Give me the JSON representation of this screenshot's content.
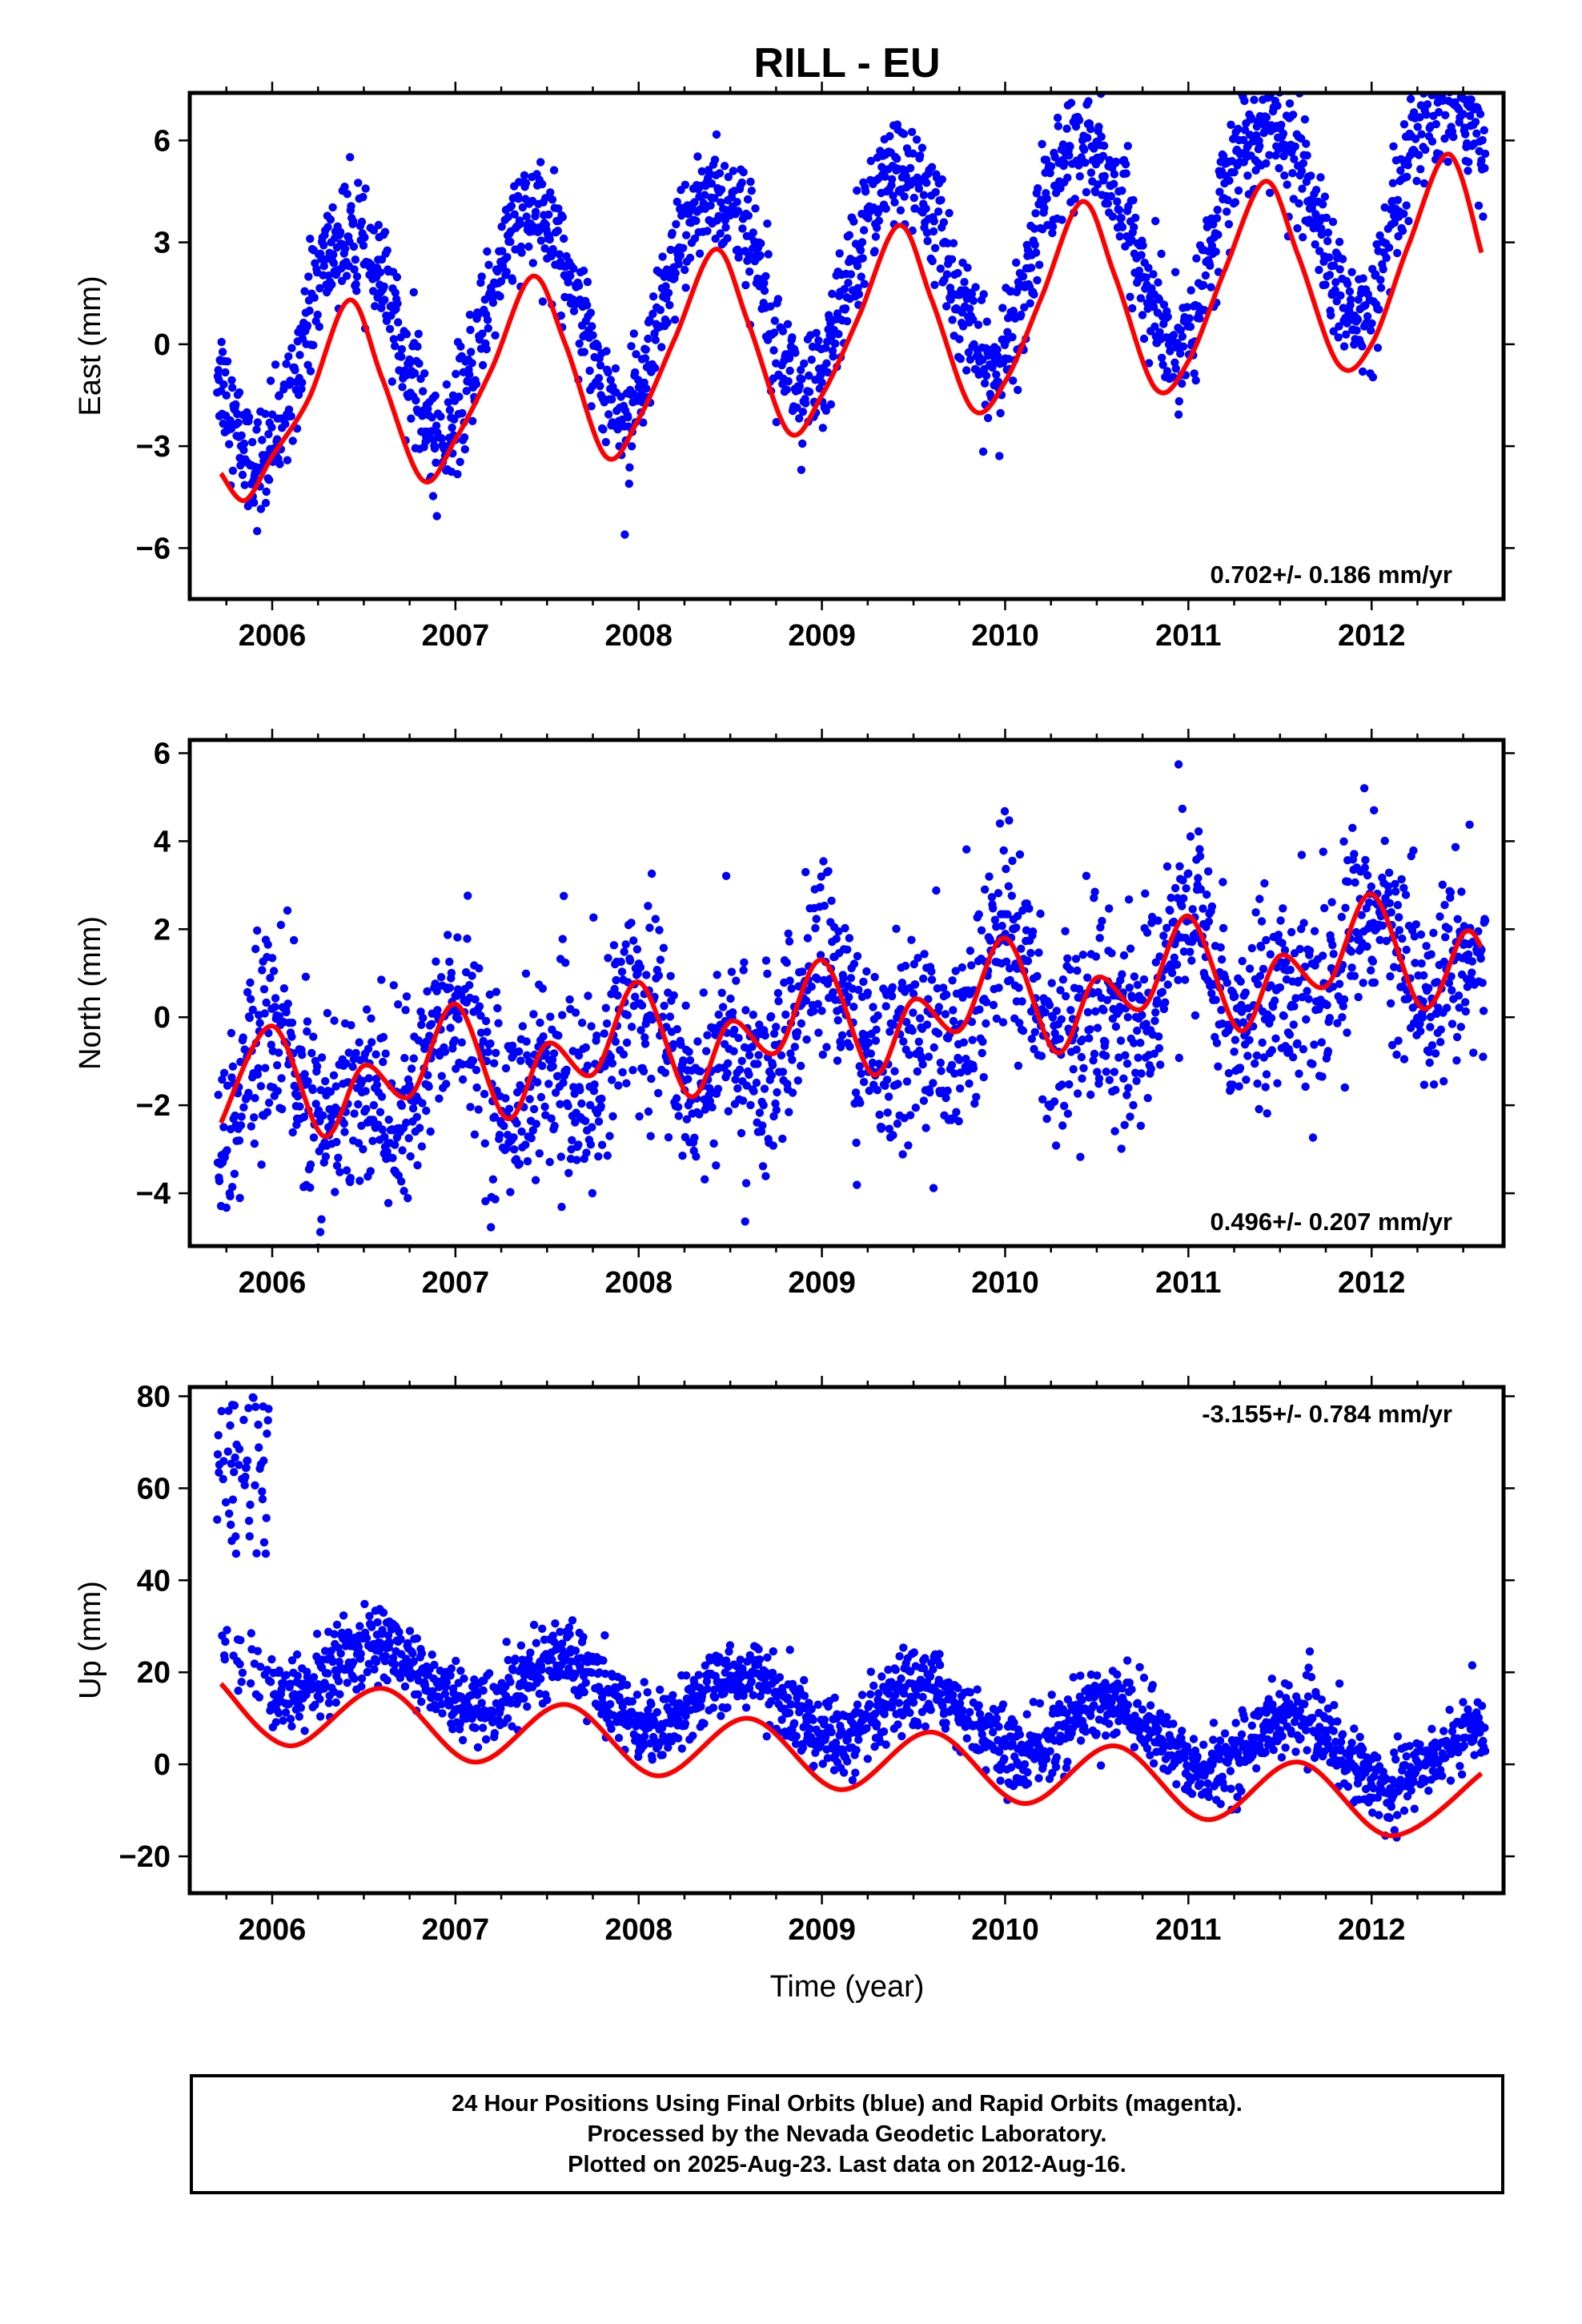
{
  "title": "RILL - EU",
  "xlabel": "Time (year)",
  "colors": {
    "final_orbits": "#0000ff",
    "model_fit": "#ff0000",
    "frame": "#000000"
  },
  "footer": {
    "line1": "24 Hour Positions Using Final Orbits (blue) and Rapid Orbits (magenta).",
    "line2": "Processed by the Nevada Geodetic Laboratory.",
    "line3": "Plotted on 2025-Aug-23. Last data on 2012-Aug-16."
  },
  "chart_data": [
    {
      "type": "scatter",
      "ylabel": "East (mm)",
      "xlim": [
        2005.55,
        2012.72
      ],
      "ylim": [
        -7.5,
        7.4
      ],
      "x_ticks": [
        2006,
        2007,
        2008,
        2009,
        2010,
        2011,
        2012
      ],
      "y_ticks": [
        -6,
        -3,
        0,
        3,
        6
      ],
      "rate_label": "0.702+/- 0.186 mm/yr",
      "rate_position": "bottom-right",
      "series": [
        {
          "role": "observations",
          "model": {
            "offset": 2.0,
            "trend": 0.7,
            "annual_amp": 3.1,
            "annual_peak": 0.42,
            "semiannual_amp": 0.35,
            "semiannual_phase": 0.2,
            "noise": 0.85
          }
        },
        {
          "role": "model-fit",
          "x": [
            2005.72,
            2005.85,
            2006.0,
            2006.2,
            2006.42,
            2006.6,
            2006.82,
            2007.0,
            2007.2,
            2007.42,
            2007.6,
            2007.82,
            2008.0,
            2008.2,
            2008.42,
            2008.6,
            2008.82,
            2009.0,
            2009.2,
            2009.42,
            2009.6,
            2009.82,
            2010.0,
            2010.2,
            2010.42,
            2010.6,
            2010.82,
            2011.0,
            2011.2,
            2011.42,
            2011.6,
            2011.82,
            2012.0,
            2012.2,
            2012.42,
            2012.6
          ],
          "y": [
            -3.8,
            -4.6,
            -3.3,
            -1.6,
            1.3,
            -1.0,
            -4.0,
            -2.8,
            -0.7,
            2.0,
            0.0,
            -3.3,
            -2.2,
            0.2,
            2.8,
            0.6,
            -2.6,
            -1.5,
            0.8,
            3.5,
            1.3,
            -1.9,
            -1.1,
            1.4,
            4.2,
            2.0,
            -1.3,
            -0.5,
            2.2,
            4.8,
            2.6,
            -0.6,
            0.0,
            2.9,
            5.6,
            2.7
          ]
        }
      ]
    },
    {
      "type": "scatter",
      "ylabel": "North (mm)",
      "xlim": [
        2005.55,
        2012.72
      ],
      "ylim": [
        -5.2,
        6.3
      ],
      "x_ticks": [
        2006,
        2007,
        2008,
        2009,
        2010,
        2011,
        2012
      ],
      "y_ticks": [
        -4,
        -2,
        0,
        2,
        4,
        6
      ],
      "rate_label": "0.496+/- 0.207 mm/yr",
      "rate_position": "bottom-right",
      "series": [
        {
          "role": "observations",
          "model": {
            "offset": -0.3,
            "trend": 0.5,
            "annual_amp": 0.9,
            "annual_peak": 0.0,
            "semiannual_amp": 0.75,
            "semiannual_phase": 0.0,
            "noise": 1.1
          }
        },
        {
          "role": "model-fit",
          "x": [
            2005.72,
            2006.0,
            2006.28,
            2006.5,
            2006.75,
            2007.0,
            2007.28,
            2007.5,
            2007.75,
            2008.0,
            2008.28,
            2008.5,
            2008.75,
            2009.0,
            2009.28,
            2009.5,
            2009.75,
            2010.0,
            2010.28,
            2010.5,
            2010.75,
            2011.0,
            2011.28,
            2011.5,
            2011.75,
            2012.0,
            2012.28,
            2012.5,
            2012.6
          ],
          "y": [
            -2.4,
            -0.2,
            -2.7,
            -1.1,
            -1.8,
            0.3,
            -2.3,
            -0.6,
            -1.3,
            0.8,
            -1.8,
            -0.1,
            -0.8,
            1.3,
            -1.3,
            0.4,
            -0.3,
            1.8,
            -0.8,
            0.9,
            0.2,
            2.3,
            -0.3,
            1.4,
            0.7,
            2.8,
            0.2,
            1.9,
            1.6
          ]
        }
      ]
    },
    {
      "type": "scatter",
      "ylabel": "Up (mm)",
      "xlim": [
        2005.55,
        2012.72
      ],
      "ylim": [
        -28,
        82
      ],
      "x_ticks": [
        2006,
        2007,
        2008,
        2009,
        2010,
        2011,
        2012
      ],
      "y_ticks": [
        -20,
        0,
        20,
        40,
        60,
        80
      ],
      "rate_label": "-3.155+/- 0.784 mm/yr",
      "rate_position": "top-right",
      "series": [
        {
          "role": "observations",
          "model": {
            "offset": 12.0,
            "trend": -3.16,
            "annual_amp": 6.5,
            "annual_peak": 0.58,
            "semiannual_amp": 0.0,
            "semiannual_phase": 0.0,
            "noise": 4.0,
            "outlier_cluster": {
              "x_range": [
                2005.7,
                2006.0
              ],
              "y_range": [
                45,
                80
              ]
            }
          }
        },
        {
          "role": "model-fit",
          "x": [
            2005.72,
            2006.1,
            2006.6,
            2007.1,
            2007.6,
            2008.1,
            2008.6,
            2009.1,
            2009.6,
            2010.1,
            2010.6,
            2011.1,
            2011.6,
            2012.1,
            2012.6
          ],
          "y": [
            17.5,
            4.0,
            16.5,
            0.5,
            13.0,
            -2.5,
            10.0,
            -5.5,
            7.0,
            -8.5,
            4.0,
            -12.0,
            0.5,
            -15.5,
            -2.0
          ]
        }
      ]
    }
  ]
}
